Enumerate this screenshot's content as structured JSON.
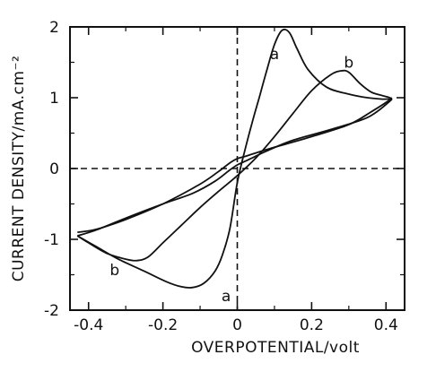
{
  "chart_data": {
    "type": "line",
    "title": "",
    "xlabel": "OVERPOTENTIAL/volt",
    "ylabel": "CURRENT DENSITY/mA.cm⁻²",
    "xlim": [
      -0.45,
      0.45
    ],
    "ylim": [
      -2,
      2
    ],
    "x_ticks": [
      -0.4,
      -0.2,
      0,
      0.2,
      0.4
    ],
    "x_tick_labels": [
      "-0.4",
      "-0.2",
      "0",
      "0.2",
      "0.4"
    ],
    "y_ticks": [
      -2,
      -1,
      0,
      1,
      2
    ],
    "y_tick_labels": [
      "-2",
      "-1",
      "0",
      "1",
      "2"
    ],
    "grid": false,
    "reference_lines": {
      "x": 0,
      "y": 0,
      "style": "dashed"
    },
    "series": [
      {
        "label": "a",
        "color": "#111111",
        "x": [
          -0.43,
          -0.38,
          -0.32,
          -0.25,
          -0.19,
          -0.15,
          -0.12,
          -0.09,
          -0.06,
          -0.04,
          -0.02,
          0.0,
          0.02,
          0.04,
          0.06,
          0.08,
          0.1,
          0.12,
          0.14,
          0.16,
          0.19,
          0.24,
          0.3,
          0.35,
          0.39,
          0.41,
          0.41,
          0.35,
          0.25,
          0.15,
          0.08,
          0.04,
          0.02,
          0.0,
          -0.02,
          -0.06,
          -0.12,
          -0.2,
          -0.3,
          -0.38,
          -0.43
        ],
        "y": [
          -0.95,
          -1.1,
          -1.28,
          -1.45,
          -1.6,
          -1.67,
          -1.68,
          -1.62,
          -1.45,
          -1.22,
          -0.85,
          -0.2,
          0.25,
          0.65,
          1.02,
          1.4,
          1.75,
          1.95,
          1.92,
          1.7,
          1.4,
          1.15,
          1.05,
          1.0,
          0.98,
          0.98,
          0.95,
          0.72,
          0.55,
          0.4,
          0.25,
          0.15,
          0.1,
          0.05,
          -0.02,
          -0.18,
          -0.35,
          -0.5,
          -0.7,
          -0.87,
          -0.95
        ]
      },
      {
        "label": "b",
        "color": "#111111",
        "x": [
          -0.43,
          -0.4,
          -0.35,
          -0.3,
          -0.27,
          -0.24,
          -0.2,
          -0.15,
          -0.1,
          -0.05,
          0.0,
          0.05,
          0.1,
          0.15,
          0.2,
          0.25,
          0.28,
          0.3,
          0.33,
          0.36,
          0.39,
          0.41,
          0.41,
          0.36,
          0.3,
          0.2,
          0.1,
          0.05,
          0.02,
          0.0,
          -0.02,
          -0.05,
          -0.1,
          -0.2,
          -0.3,
          -0.38,
          -0.43
        ],
        "y": [
          -0.95,
          -1.05,
          -1.2,
          -1.28,
          -1.3,
          -1.25,
          -1.05,
          -0.8,
          -0.55,
          -0.32,
          -0.1,
          0.15,
          0.45,
          0.78,
          1.1,
          1.32,
          1.38,
          1.36,
          1.2,
          1.08,
          1.03,
          1.0,
          0.97,
          0.8,
          0.62,
          0.45,
          0.3,
          0.22,
          0.17,
          0.14,
          0.08,
          -0.04,
          -0.22,
          -0.5,
          -0.72,
          -0.86,
          -0.9
        ]
      }
    ],
    "annotations": [
      {
        "text": "a",
        "x": 0.1,
        "y": 1.62
      },
      {
        "text": "b",
        "x": 0.3,
        "y": 1.5
      },
      {
        "text": "b",
        "x": -0.33,
        "y": -1.43
      },
      {
        "text": "a",
        "x": -0.03,
        "y": -1.8
      }
    ]
  }
}
